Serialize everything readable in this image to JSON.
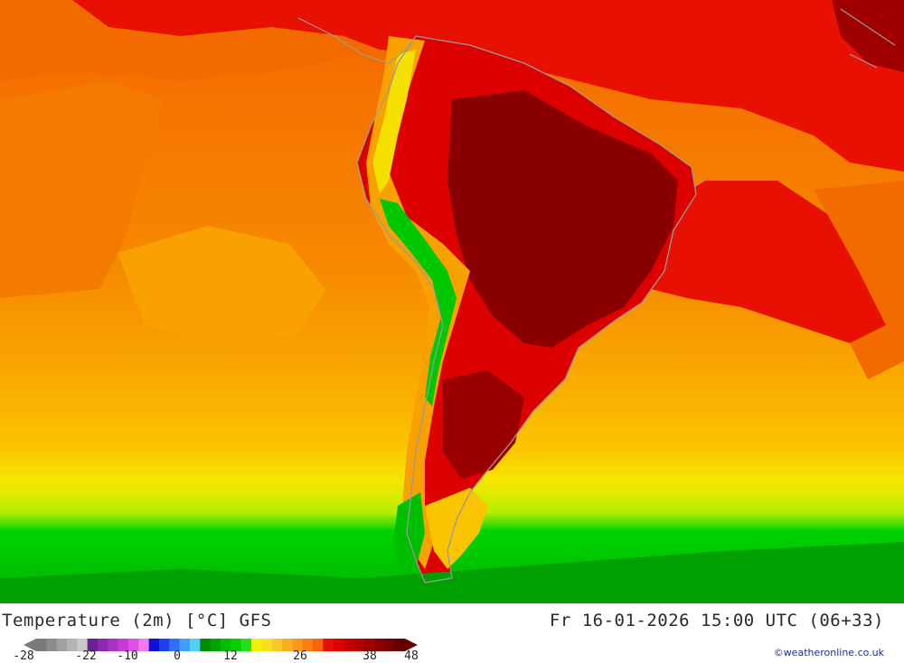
{
  "map": {
    "title": "Temperature (2m) [°C] GFS",
    "datetime": "Fr 16-01-2026 15:00 UTC (06+33)",
    "credit": "©weatheronline.co.uk",
    "region": "South America",
    "colors": {
      "deep_red": "#8a0000",
      "dark_red": "#b00000",
      "red": "#e60000",
      "red_orange": "#f03a00",
      "orange": "#f57a00",
      "light_orange": "#f9a100",
      "amber": "#fcc400",
      "yellow": "#f5f000",
      "lime": "#b8f000",
      "green": "#00d200",
      "dark_green": "#00aa00",
      "coast": "#9a9a9a"
    }
  },
  "legend": {
    "ticks": [
      "-28",
      "-22",
      "-10",
      "0",
      "12",
      "26",
      "38",
      "48"
    ],
    "colors": [
      "#7a7a7a",
      "#8c8c8c",
      "#a0a0a0",
      "#b4b4b4",
      "#c8c8c8",
      "#6e2090",
      "#8a2ab0",
      "#a832c8",
      "#c83ad8",
      "#e050e8",
      "#f07cf0",
      "#1010d8",
      "#2040f0",
      "#3070f8",
      "#40a0f8",
      "#50d0f8",
      "#008c00",
      "#00a600",
      "#00be00",
      "#00d200",
      "#20e020",
      "#f0f000",
      "#f8e020",
      "#f8c828",
      "#f8b020",
      "#f89818",
      "#f88010",
      "#f86408",
      "#e81000",
      "#dc0000",
      "#c80000",
      "#b40000",
      "#a00000",
      "#8c0000",
      "#780000",
      "#640000"
    ]
  }
}
